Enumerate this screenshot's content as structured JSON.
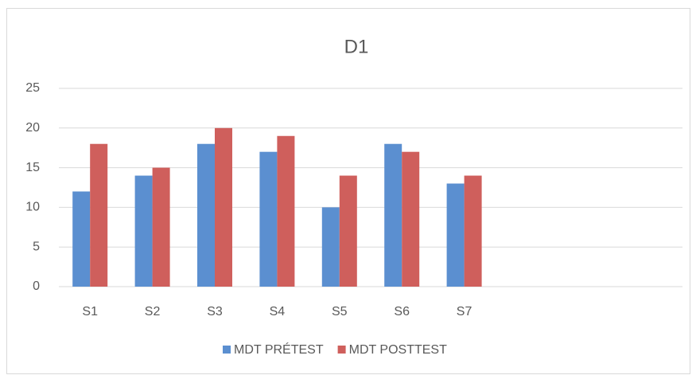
{
  "chart_data": {
    "type": "bar",
    "title": "D1",
    "categories": [
      "S1",
      "S2",
      "S3",
      "S4",
      "S5",
      "S6",
      "S7",
      null,
      null,
      null
    ],
    "series": [
      {
        "name": "MDT PRÉTEST",
        "color": "#5b8fd0",
        "values": [
          12,
          14,
          18,
          17,
          10,
          18,
          13,
          null,
          null,
          null
        ]
      },
      {
        "name": "MDT POSTTEST",
        "color": "#cf5f5c",
        "values": [
          18,
          15,
          20,
          19,
          14,
          17,
          14,
          null,
          null,
          null
        ]
      }
    ],
    "ylim": [
      0,
      25
    ],
    "yticks": [
      0,
      5,
      10,
      15,
      20,
      25
    ],
    "grid": true,
    "legend": "bottom"
  }
}
